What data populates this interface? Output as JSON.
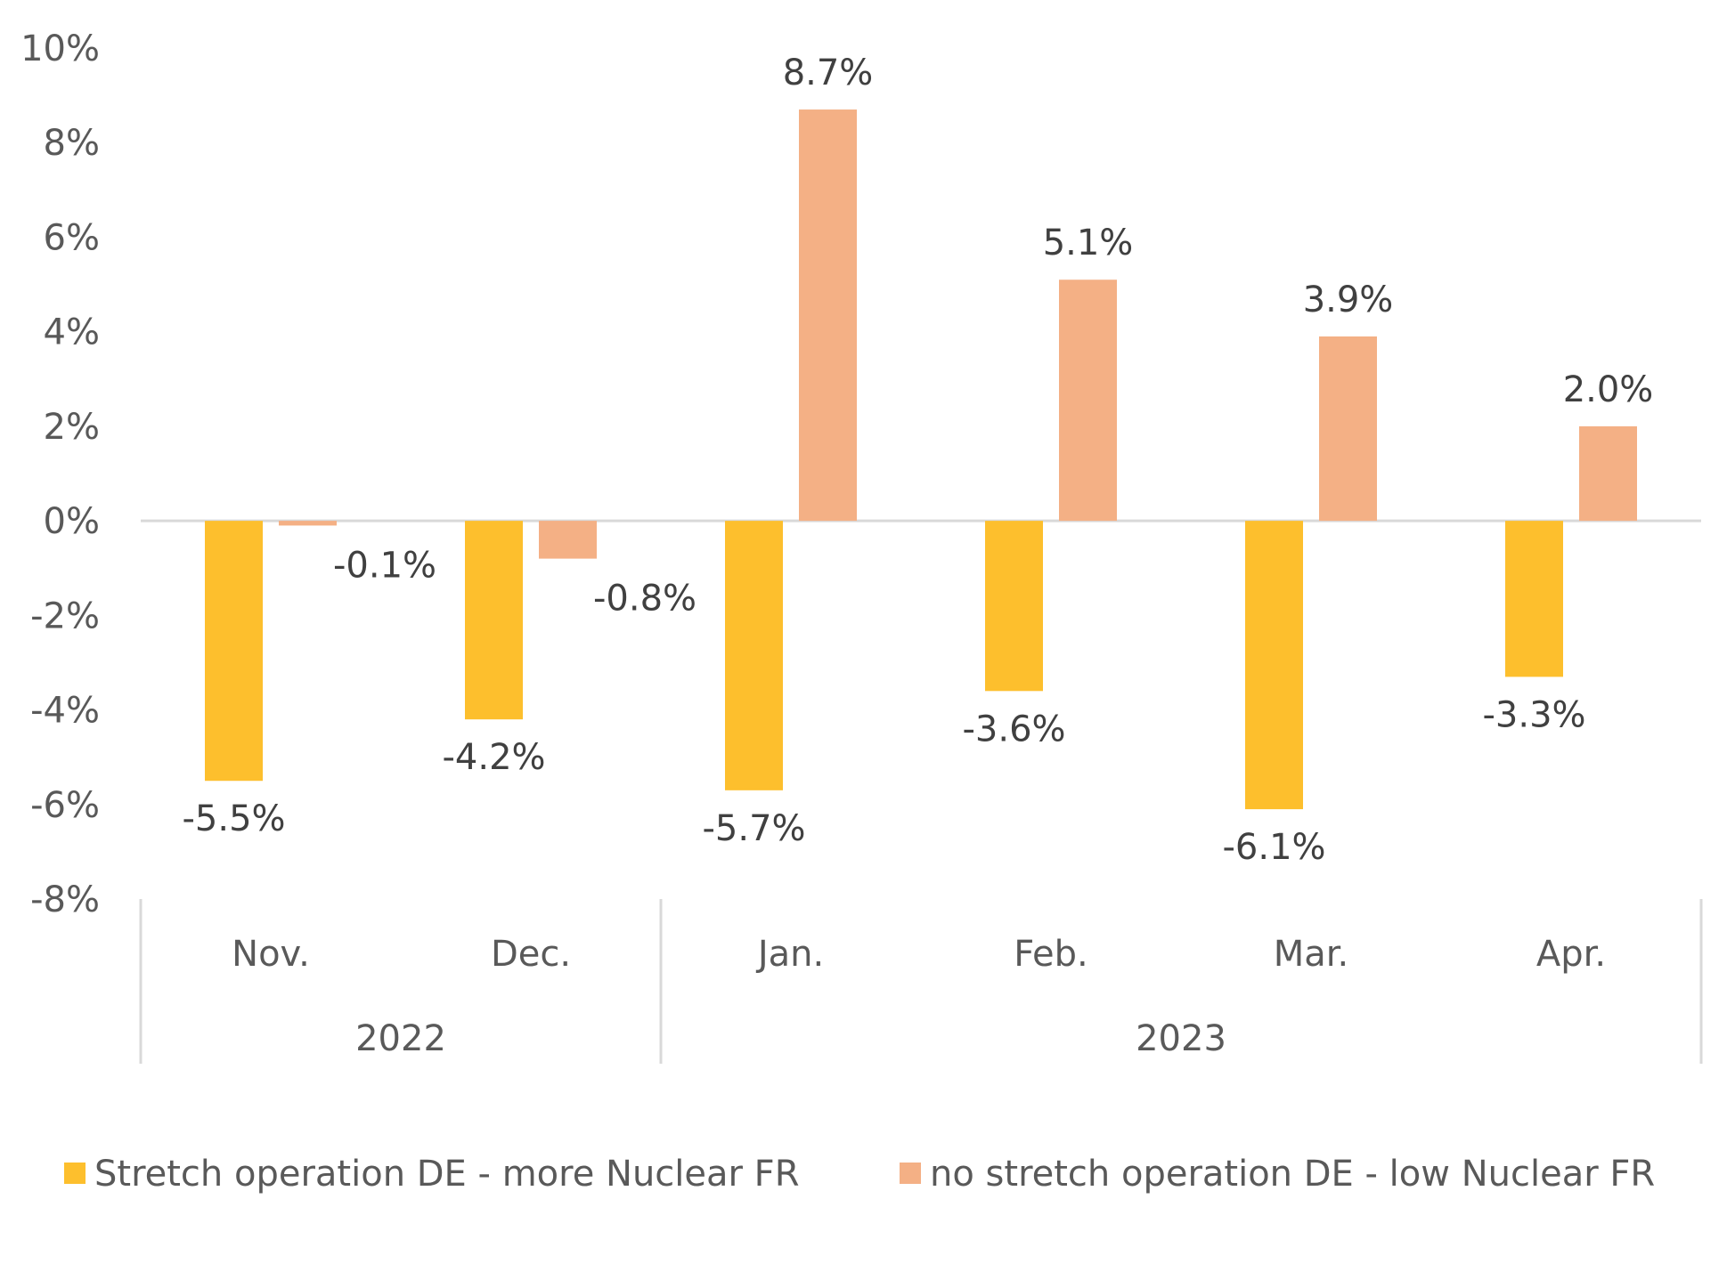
{
  "chart_data": {
    "type": "bar",
    "categories": [
      "Nov.",
      "Dec.",
      "Jan.",
      "Feb.",
      "Mar.",
      "Apr."
    ],
    "groups": [
      {
        "label": "2022",
        "categories": [
          "Nov.",
          "Dec."
        ]
      },
      {
        "label": "2023",
        "categories": [
          "Jan.",
          "Feb.",
          "Mar.",
          "Apr."
        ]
      }
    ],
    "series": [
      {
        "name": "Stretch operation DE - more Nuclear FR",
        "color": "#FDBF2D",
        "values": [
          -5.5,
          -4.2,
          -5.7,
          -3.6,
          -6.1,
          -3.3
        ],
        "labels": [
          "-5.5%",
          "-4.2%",
          "-5.7%",
          "-3.6%",
          "-6.1%",
          "-3.3%"
        ]
      },
      {
        "name": "no stretch operation DE - low Nuclear FR",
        "color": "#F4B085",
        "values": [
          -0.1,
          -0.8,
          8.7,
          5.1,
          3.9,
          2.0
        ],
        "labels": [
          "-0.1%",
          "-0.8%",
          "8.7%",
          "5.1%",
          "3.9%",
          "2.0%"
        ]
      }
    ],
    "ylim": [
      -8,
      10
    ],
    "yticks": [
      10,
      8,
      6,
      4,
      2,
      0,
      -2,
      -4,
      -6,
      -8
    ],
    "ytick_labels": [
      "10%",
      "8%",
      "6%",
      "4%",
      "2%",
      "0%",
      "-2%",
      "-4%",
      "-6%",
      "-8%"
    ],
    "grid": false,
    "legend_position": "bottom",
    "axis_color": "#D9D9D9",
    "title": "",
    "xlabel": "",
    "ylabel": ""
  }
}
